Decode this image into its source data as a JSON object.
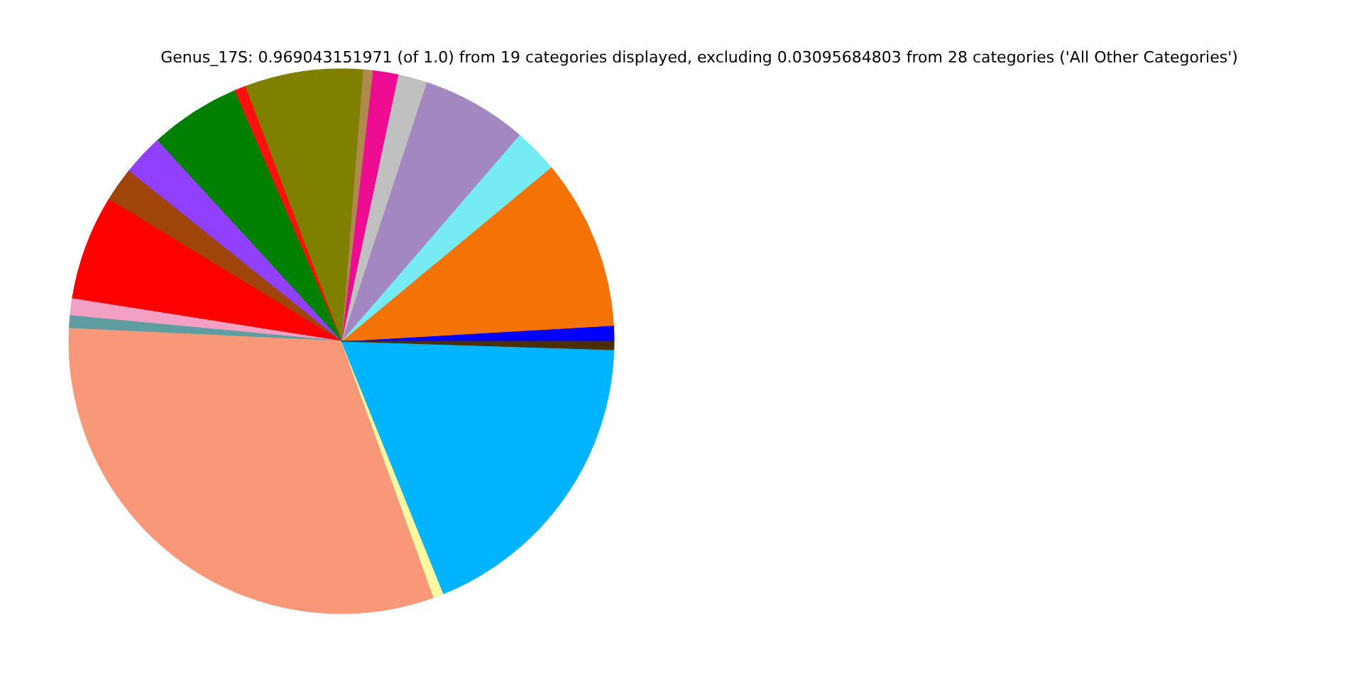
{
  "chart_data": {
    "type": "pie",
    "title": "Genus_17S: 0.969043151971 (of 1.0) from 19 categories displayed, excluding 0.03095684803 from 28 categories ('All Other Categories')",
    "categories": [
      null,
      null,
      null,
      null,
      null,
      null,
      null,
      null,
      null,
      null,
      null,
      null,
      null,
      null,
      null,
      null,
      null,
      null,
      null
    ],
    "values": [
      0.92,
      10.11,
      2.64,
      6.28,
      1.72,
      1.5,
      0.58,
      7.0,
      0.67,
      5.39,
      2.44,
      2.03,
      6.22,
      1.0,
      0.75,
      31.25,
      0.61,
      18.39,
      0.5
    ],
    "colors": [
      "#0000ff",
      "#f47304",
      "#77ebf3",
      "#a387c0",
      "#c0c0c0",
      "#ee0c93",
      "#b08850",
      "#808000",
      "#ff1010",
      "#008000",
      "#9140ff",
      "#a0450a",
      "#ff0000",
      "#f4a0c4",
      "#5f9ea0",
      "#f89878",
      "#fffaa0",
      "#00b4ff",
      "#4a3000"
    ]
  }
}
